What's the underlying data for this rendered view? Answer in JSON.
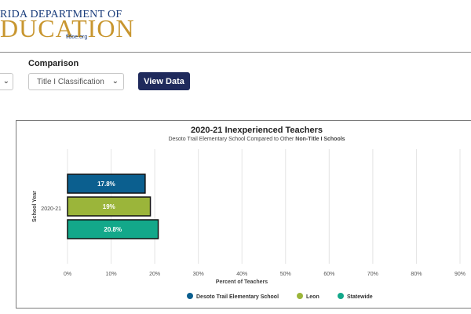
{
  "logo": {
    "top_text": "RIDA DEPARTMENT OF",
    "main_text": "DUCATION",
    "url": "fldoe.org"
  },
  "filters": {
    "comparison_label": "Comparison",
    "comparison_value": "Title I Classification",
    "view_button": "View Data"
  },
  "colors": {
    "series1": "#0b5f8f",
    "series2": "#9bb53a",
    "series3": "#13a88a",
    "button": "#1f2a5c"
  },
  "chart_data": {
    "type": "bar",
    "orientation": "horizontal",
    "title": "2020-21 Inexperienced Teachers",
    "subtitle_pre": "Desoto Trail Elementary School Compared to Other ",
    "subtitle_bold": "Non-Title I Schools",
    "categories": [
      "2020-21"
    ],
    "series": [
      {
        "name": "Desoto Trail Elementary School",
        "values": [
          17.8
        ],
        "labels": [
          "17.8%"
        ]
      },
      {
        "name": "Leon",
        "values": [
          19
        ],
        "labels": [
          "19%"
        ]
      },
      {
        "name": "Statewide",
        "values": [
          20.8
        ],
        "labels": [
          "20.8%"
        ]
      }
    ],
    "xlabel": "Percent of Teachers",
    "ylabel": "School Year",
    "xlim": [
      0,
      90
    ],
    "xticks": [
      "0%",
      "10%",
      "20%",
      "30%",
      "40%",
      "50%",
      "60%",
      "70%",
      "80%",
      "90%"
    ],
    "grid": true,
    "legend_position": "bottom"
  }
}
